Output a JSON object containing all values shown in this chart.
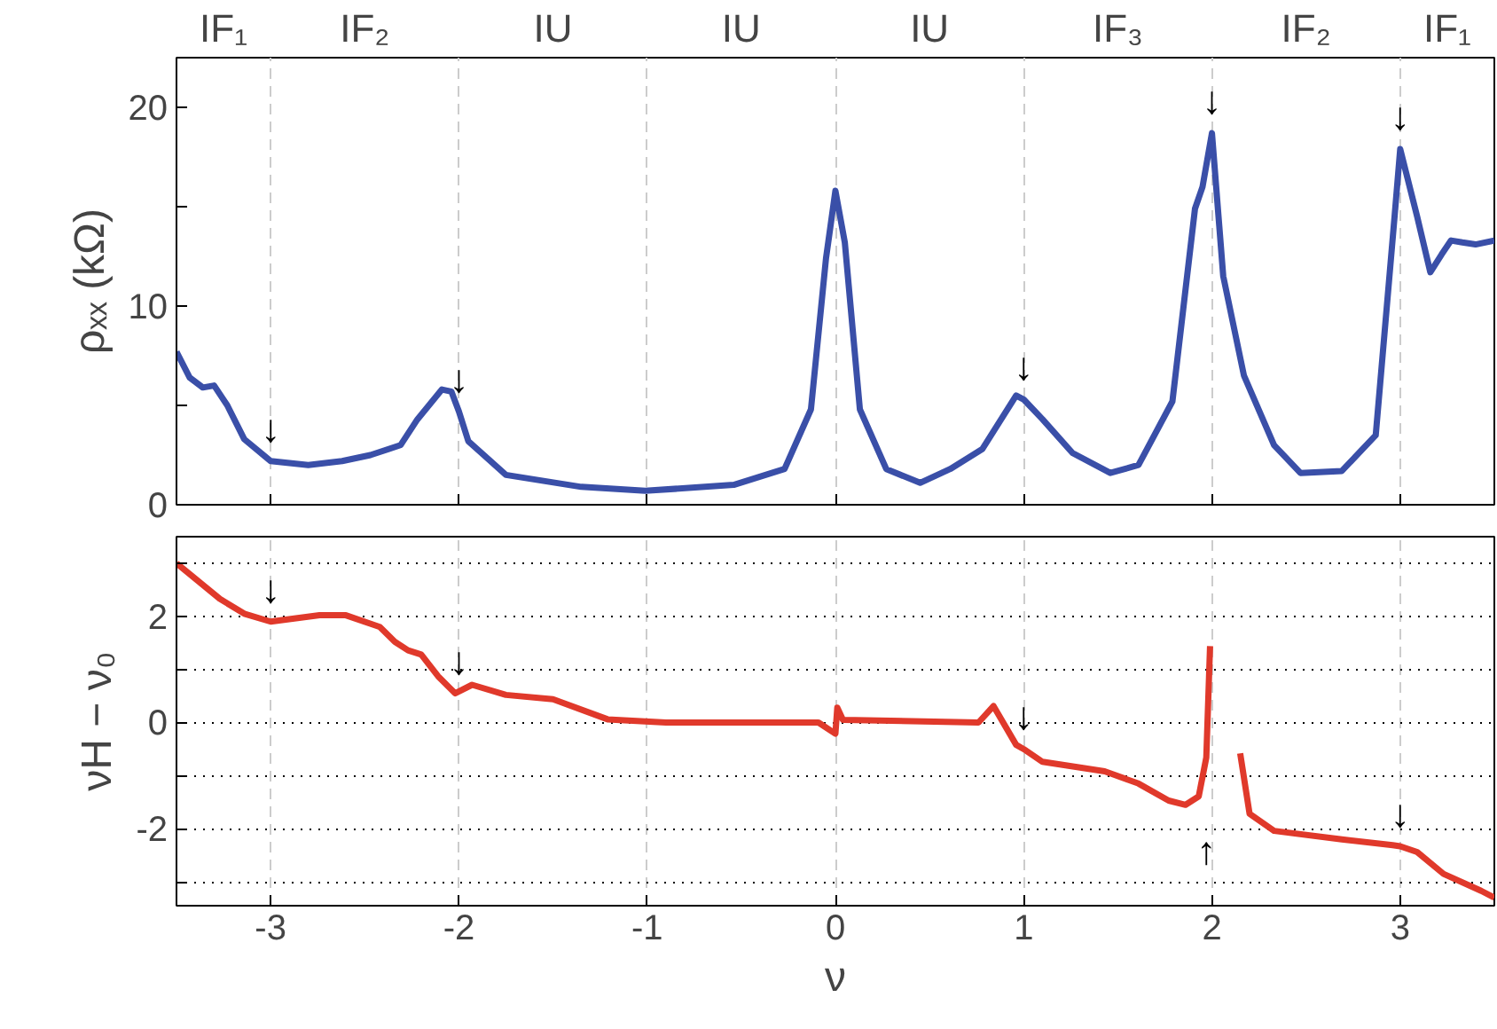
{
  "chart_data": [
    {
      "type": "line",
      "ylabel": "ρₓₓ (kΩ)",
      "xlim": [
        -3.5,
        3.5
      ],
      "xticks": [
        -3,
        -2,
        -1,
        0,
        1,
        2,
        3
      ],
      "tick_labels": "y",
      "ylim": [
        0,
        22.5
      ],
      "yticks": [
        0,
        {
          "value": 5,
          "label": null
        },
        10,
        {
          "value": 15,
          "label": null
        },
        20
      ],
      "grid": "x",
      "series": [
        {
          "color": "#3a4fa8",
          "x": [
            -3.5,
            -3.43,
            -3.36,
            -3.3,
            -3.23,
            -3.14,
            -3.0,
            -2.8,
            -2.62,
            -2.47,
            -2.31,
            -2.22,
            -2.09,
            -2.04,
            -2.0,
            -1.95,
            -1.75,
            -1.35,
            -1.01,
            -0.54,
            -0.27,
            -0.13,
            -0.05,
            0.0,
            0.05,
            0.13,
            0.27,
            0.45,
            0.61,
            0.78,
            0.96,
            1.0,
            1.1,
            1.26,
            1.46,
            1.61,
            1.79,
            1.91,
            1.95,
            2.0,
            2.06,
            2.17,
            2.33,
            2.47,
            2.69,
            2.87,
            2.97,
            3.0,
            3.09,
            3.16,
            3.22,
            3.27,
            3.33,
            3.4,
            3.5
          ],
          "values": [
            7.7,
            6.4,
            5.9,
            6.0,
            5.0,
            3.3,
            2.2,
            2.0,
            2.2,
            2.5,
            3.0,
            4.3,
            5.8,
            5.7,
            4.7,
            3.2,
            1.5,
            0.9,
            0.7,
            1.0,
            1.8,
            4.8,
            12.4,
            15.8,
            13.2,
            4.8,
            1.8,
            1.1,
            1.8,
            2.8,
            5.5,
            5.3,
            4.3,
            2.6,
            1.6,
            2.0,
            5.2,
            14.9,
            16.0,
            18.7,
            11.5,
            6.5,
            3.0,
            1.6,
            1.7,
            3.5,
            14.5,
            17.9,
            14.5,
            11.7,
            12.6,
            13.3,
            13.2,
            13.1,
            13.3
          ]
        }
      ],
      "annotations": [
        "IF₁",
        "IF₂",
        "IU",
        "IU",
        "IU",
        "IF₃",
        "IF₂",
        "IF₁",
        {
          "text": "↓",
          "x": -3,
          "y": 2.2
        },
        {
          "text": "↓",
          "x": -2,
          "y": 4.7
        },
        {
          "text": "↓",
          "x": 1,
          "y": 5.3
        },
        {
          "text": "↓",
          "x": 2,
          "y": 18.7
        },
        {
          "text": "↓",
          "x": 3,
          "y": 17.9
        }
      ]
    },
    {
      "type": "line",
      "xlabel": "ν",
      "ylabel": "νH − ν₀",
      "xlim": [
        -3.5,
        3.5
      ],
      "xticks": [
        -3,
        -2,
        -1,
        0,
        1,
        2,
        3
      ],
      "ylim": [
        -3.45,
        3.5
      ],
      "yticks": [
        {
          "value": -3,
          "label": null
        },
        -2,
        {
          "value": -1,
          "label": null
        },
        0,
        {
          "value": 1,
          "label": null
        },
        2,
        {
          "value": 3,
          "label": null
        }
      ],
      "grid": true,
      "series": [
        {
          "color": "#e0392b",
          "x": [
            -3.5,
            -3.27,
            -3.14,
            -3.0,
            -2.74,
            -2.6,
            -2.42,
            -2.34,
            -2.27,
            -2.2,
            -2.11,
            -2.02,
            -1.93,
            -1.75,
            -1.5,
            -1.21,
            -0.9,
            -0.09,
            0.0,
            0.01,
            0.04,
            0.76,
            0.84,
            0.96,
            1.0,
            1.1,
            1.43,
            1.61,
            1.77,
            1.86,
            1.93,
            1.97,
            1.99,
            2.01,
            2.08,
            2.14,
            2.15,
            2.2,
            2.33,
            2.69,
            2.96,
            3.0,
            3.09,
            3.23,
            3.43,
            3.5
          ],
          "values": [
            3.0,
            2.33,
            2.05,
            1.9,
            2.02,
            2.02,
            1.8,
            1.52,
            1.36,
            1.28,
            0.87,
            0.55,
            0.71,
            0.52,
            0.44,
            0.06,
            0.0,
            0.0,
            -0.21,
            0.28,
            0.05,
            0.0,
            0.31,
            -0.42,
            -0.5,
            -0.74,
            -0.92,
            -1.15,
            -1.47,
            -1.55,
            -1.39,
            -0.66,
            1.44,
            null,
            null,
            null,
            -0.58,
            -1.72,
            -2.04,
            -2.2,
            -2.31,
            -2.33,
            -2.44,
            -2.85,
            -3.17,
            -3.3
          ]
        }
      ],
      "annotations": [
        {
          "text": "↓",
          "x": -3,
          "y": 1.9
        },
        {
          "text": "↓",
          "x": -2,
          "y": 0.55
        },
        {
          "text": "↓",
          "x": 1,
          "y": -0.5
        },
        {
          "text": "↑",
          "x": 1.97,
          "y": -0.66
        },
        {
          "text": "↓",
          "x": 3,
          "y": -2.33
        }
      ]
    }
  ]
}
